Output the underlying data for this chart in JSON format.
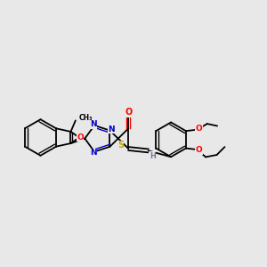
{
  "bg_color": "#e8e8e8",
  "atom_colors": {
    "C": "#000000",
    "N": "#0000cc",
    "O": "#ff0000",
    "S": "#bbaa00",
    "H": "#777799"
  },
  "bond_color": "#000000",
  "lw": 1.3,
  "lw2": 1.0
}
